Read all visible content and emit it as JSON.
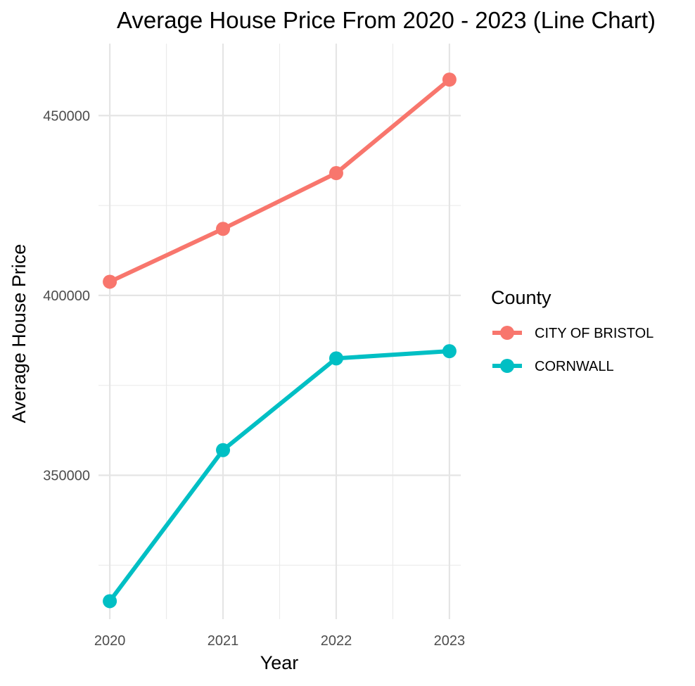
{
  "chart_data": {
    "type": "line",
    "title": "Average House Price From 2020 - 2023 (Line Chart)",
    "xlabel": "Year",
    "ylabel": "Average House Price",
    "x": [
      2020,
      2021,
      2022,
      2023
    ],
    "xlim": [
      2019.9,
      2023.1
    ],
    "ylim": [
      310000,
      470000
    ],
    "y_ticks": [
      350000,
      400000,
      450000
    ],
    "y_tick_labels": [
      "350000",
      "400000",
      "450000"
    ],
    "grid": true,
    "legend": {
      "title": "County",
      "position": "right"
    },
    "series": [
      {
        "name": "CITY OF BRISTOL",
        "color": "#F8766D",
        "values": [
          403800,
          418500,
          434000,
          460000
        ]
      },
      {
        "name": "CORNWALL",
        "color": "#00BFC4",
        "values": [
          315000,
          357000,
          382500,
          384500
        ]
      }
    ]
  }
}
